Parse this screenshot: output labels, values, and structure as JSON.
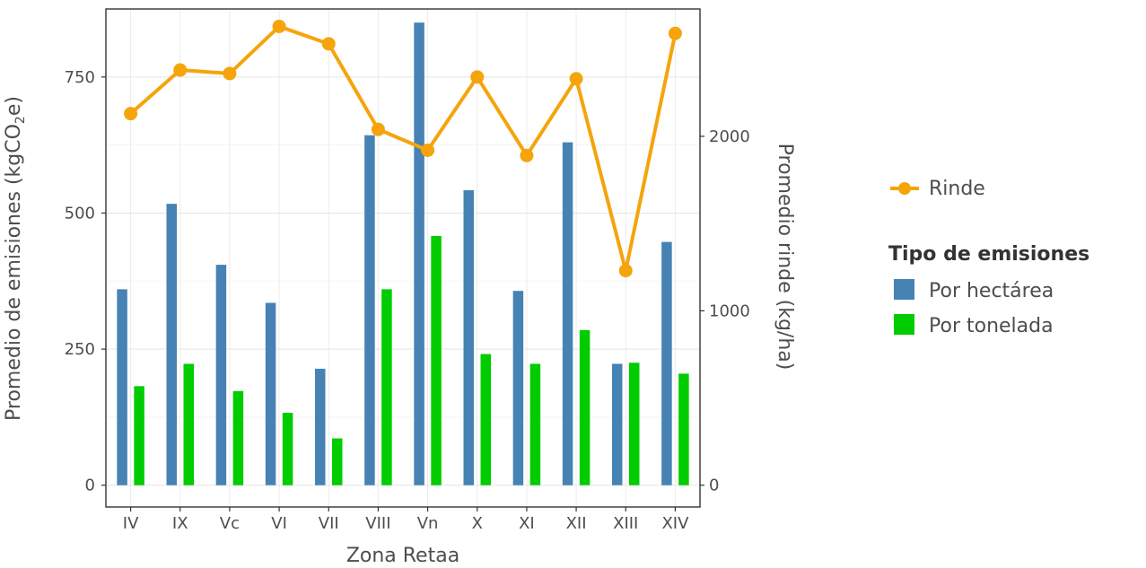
{
  "chart_data": {
    "type": "bar",
    "categories": [
      "IV",
      "IX",
      "Vc",
      "VI",
      "VII",
      "VIII",
      "Vn",
      "X",
      "XI",
      "XII",
      "XIII",
      "XIV"
    ],
    "series": [
      {
        "name": "Por hectárea",
        "values": [
          360,
          517,
          405,
          335,
          214,
          643,
          850,
          542,
          357,
          630,
          223,
          447
        ],
        "color": "#4682b4"
      },
      {
        "name": "Por tonelada",
        "values": [
          182,
          223,
          173,
          133,
          86,
          360,
          458,
          241,
          223,
          285,
          225,
          205
        ],
        "color": "#00cc00"
      }
    ],
    "line_series": {
      "name": "Rinde",
      "values": [
        2130,
        2380,
        2360,
        2630,
        2530,
        2040,
        1920,
        2340,
        1890,
        2330,
        1230,
        2590
      ],
      "color": "#f5a40c",
      "axis": "right"
    },
    "xlabel": "Zona Retaa",
    "ylabel": "Promedio de emisiones (kgCO",
    "ylabel_sub": "2",
    "ylabel_end": "e)",
    "y2label": "Promedio rinde (kg/ha)",
    "ylim": [
      -40,
      875
    ],
    "y2lim": [
      0,
      2730
    ],
    "yticks": [
      0,
      250,
      500,
      750
    ],
    "y2ticks": [
      0,
      1000,
      2000
    ],
    "legend_position": "right",
    "legend_title": "Tipo de emisiones",
    "grid": true
  }
}
